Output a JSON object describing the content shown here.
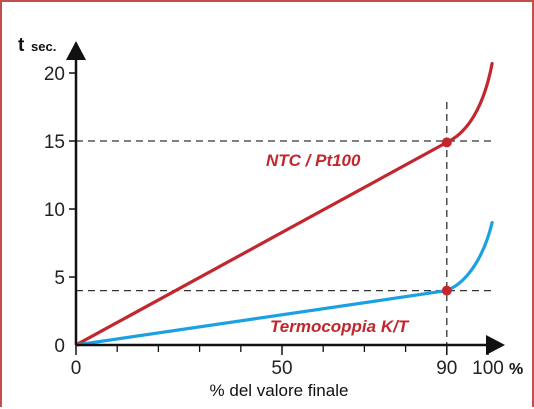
{
  "chart_data": {
    "type": "line",
    "title": "",
    "ylabel": "t",
    "ylabel_unit": "sec.",
    "xlabel": "% del valore finale",
    "x_unit_symbol": "%",
    "xlim": [
      0,
      100
    ],
    "ylim": [
      0,
      20
    ],
    "x_ticks": [
      {
        "value": 0,
        "label": "0"
      },
      {
        "value": 50,
        "label": "50"
      },
      {
        "value": 90,
        "label": "90"
      },
      {
        "value": 100,
        "label": "100"
      }
    ],
    "x_minor_ticks": [
      10,
      20,
      30,
      40,
      60,
      70,
      80
    ],
    "y_ticks": [
      {
        "value": 0,
        "label": "0"
      },
      {
        "value": 5,
        "label": "5"
      },
      {
        "value": 10,
        "label": "10"
      },
      {
        "value": 15,
        "label": "15"
      },
      {
        "value": 20,
        "label": "20"
      }
    ],
    "grid": false,
    "reference_lines": {
      "x": [
        90
      ],
      "y": [
        15,
        4
      ]
    },
    "series": [
      {
        "name": "NTC / Pt100",
        "color": "#c1272d",
        "points": [
          [
            0,
            0
          ],
          [
            90,
            14.9
          ],
          [
            95,
            15.6
          ],
          [
            99,
            17.5
          ],
          [
            101,
            20.7
          ]
        ],
        "marker": [
          90,
          14.9
        ]
      },
      {
        "name": "Termocoppia K/T",
        "color": "#1ba1e2",
        "points": [
          [
            0,
            0
          ],
          [
            90,
            4.0
          ],
          [
            95,
            4.6
          ],
          [
            99,
            6.5
          ],
          [
            101,
            9.0
          ]
        ],
        "marker": [
          90,
          4.0
        ]
      }
    ]
  },
  "colors": {
    "border": "#c0504d",
    "axis": "#111111",
    "reference": "#333333",
    "marker": "#c1272d"
  }
}
